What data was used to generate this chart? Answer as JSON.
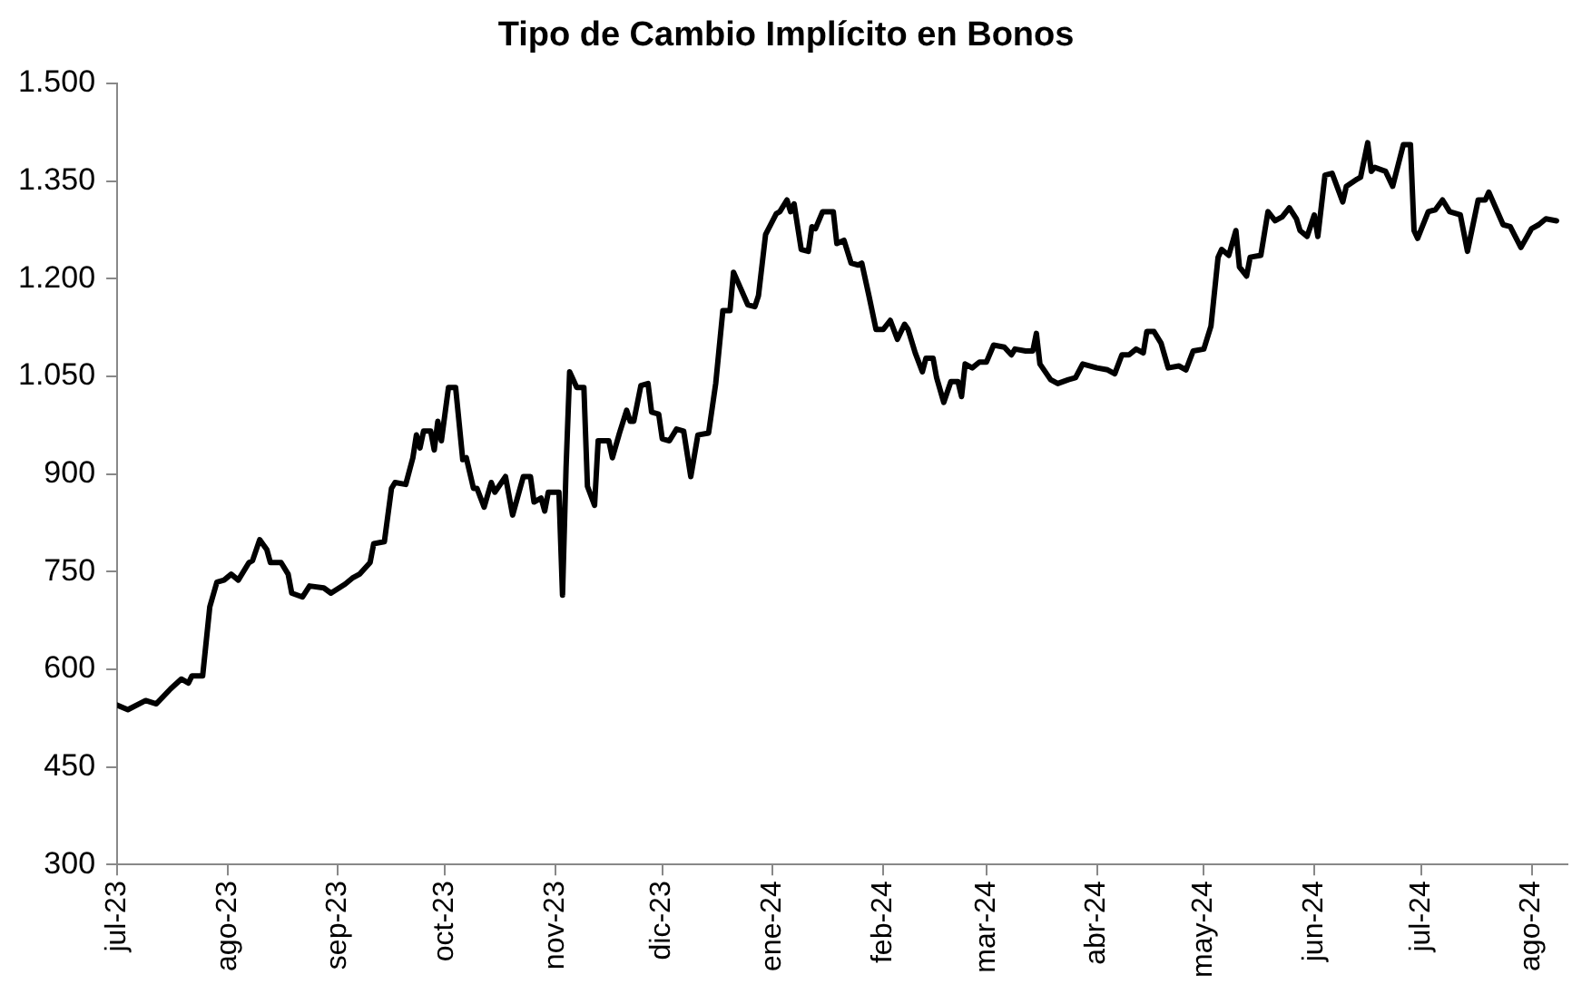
{
  "chart_data": {
    "type": "line",
    "title": "Tipo de Cambio Implícito en Bonos",
    "color": "#000000",
    "x": [
      "2023-07-01",
      "2023-07-04",
      "2023-07-09",
      "2023-07-12",
      "2023-07-16",
      "2023-07-19",
      "2023-07-21",
      "2023-07-22",
      "2023-07-25",
      "2023-07-27",
      "2023-07-29",
      "2023-07-31",
      "2023-08-02",
      "2023-08-04",
      "2023-08-07",
      "2023-08-08",
      "2023-08-10",
      "2023-08-12",
      "2023-08-13",
      "2023-08-16",
      "2023-08-18",
      "2023-08-19",
      "2023-08-22",
      "2023-08-24",
      "2023-08-28",
      "2023-08-30",
      "2023-09-03",
      "2023-09-05",
      "2023-09-07",
      "2023-09-10",
      "2023-09-11",
      "2023-09-14",
      "2023-09-16",
      "2023-09-17",
      "2023-09-20",
      "2023-09-22",
      "2023-09-23",
      "2023-09-24",
      "2023-09-25",
      "2023-09-27",
      "2023-09-28",
      "2023-09-29",
      "2023-09-30",
      "2023-10-02",
      "2023-10-04",
      "2023-10-06",
      "2023-10-07",
      "2023-10-09",
      "2023-10-10",
      "2023-10-12",
      "2023-10-14",
      "2023-10-15",
      "2023-10-18",
      "2023-10-20",
      "2023-10-23",
      "2023-10-25",
      "2023-10-26",
      "2023-10-28",
      "2023-10-29",
      "2023-10-30",
      "2023-11-02",
      "2023-11-03",
      "2023-11-04",
      "2023-11-05",
      "2023-11-07",
      "2023-11-09",
      "2023-11-10",
      "2023-11-12",
      "2023-11-13",
      "2023-11-16",
      "2023-11-17",
      "2023-11-19",
      "2023-11-21",
      "2023-11-22",
      "2023-11-23",
      "2023-11-25",
      "2023-11-27",
      "2023-11-28",
      "2023-11-30",
      "2023-12-01",
      "2023-12-03",
      "2023-12-05",
      "2023-12-07",
      "2023-12-09",
      "2023-12-11",
      "2023-12-14",
      "2023-12-16",
      "2023-12-18",
      "2023-12-20",
      "2023-12-21",
      "2023-12-25",
      "2023-12-27",
      "2023-12-28",
      "2023-12-30",
      "2024-01-02",
      "2024-01-03",
      "2024-01-05",
      "2024-01-06",
      "2024-01-07",
      "2024-01-09",
      "2024-01-11",
      "2024-01-12",
      "2024-01-13",
      "2024-01-15",
      "2024-01-18",
      "2024-01-19",
      "2024-01-21",
      "2024-01-23",
      "2024-01-25",
      "2024-01-26",
      "2024-01-28",
      "2024-01-30",
      "2024-02-01",
      "2024-02-03",
      "2024-02-05",
      "2024-02-07",
      "2024-02-08",
      "2024-02-10",
      "2024-02-12",
      "2024-02-13",
      "2024-02-15",
      "2024-02-16",
      "2024-02-18",
      "2024-02-20",
      "2024-02-22",
      "2024-02-23",
      "2024-02-24",
      "2024-02-26",
      "2024-02-28",
      "2024-03-01",
      "2024-03-03",
      "2024-03-06",
      "2024-03-08",
      "2024-03-09",
      "2024-03-12",
      "2024-03-14",
      "2024-03-15",
      "2024-03-16",
      "2024-03-19",
      "2024-03-21",
      "2024-03-24",
      "2024-03-26",
      "2024-03-28",
      "2024-04-01",
      "2024-04-04",
      "2024-04-06",
      "2024-04-08",
      "2024-04-10",
      "2024-04-12",
      "2024-04-14",
      "2024-04-15",
      "2024-04-17",
      "2024-04-19",
      "2024-04-21",
      "2024-04-24",
      "2024-04-26",
      "2024-04-28",
      "2024-05-01",
      "2024-05-03",
      "2024-05-05",
      "2024-05-06",
      "2024-05-08",
      "2024-05-10",
      "2024-05-11",
      "2024-05-13",
      "2024-05-14",
      "2024-05-17",
      "2024-05-19",
      "2024-05-21",
      "2024-05-23",
      "2024-05-25",
      "2024-05-27",
      "2024-05-28",
      "2024-05-30",
      "2024-06-01",
      "2024-06-02",
      "2024-06-04",
      "2024-06-06",
      "2024-06-09",
      "2024-06-10",
      "2024-06-13",
      "2024-06-14",
      "2024-06-16",
      "2024-06-17",
      "2024-06-18",
      "2024-06-21",
      "2024-06-23",
      "2024-06-26",
      "2024-06-28",
      "2024-06-29",
      "2024-06-30",
      "2024-07-03",
      "2024-07-05",
      "2024-07-07",
      "2024-07-09",
      "2024-07-12",
      "2024-07-14",
      "2024-07-17",
      "2024-07-19",
      "2024-07-20",
      "2024-07-24",
      "2024-07-26",
      "2024-07-29",
      "2024-08-01",
      "2024-08-03",
      "2024-08-05",
      "2024-08-08"
    ],
    "values": [
      545,
      538,
      552,
      547,
      570,
      585,
      579,
      590,
      590,
      696,
      734,
      737,
      746,
      737,
      764,
      767,
      799,
      784,
      764,
      764,
      746,
      717,
      711,
      728,
      725,
      717,
      731,
      740,
      746,
      764,
      793,
      796,
      878,
      887,
      884,
      925,
      960,
      940,
      966,
      966,
      937,
      981,
      951,
      1033,
      1033,
      922,
      925,
      878,
      878,
      849,
      887,
      872,
      896,
      837,
      896,
      896,
      857,
      863,
      843,
      872,
      872,
      714,
      910,
      1057,
      1033,
      1033,
      881,
      852,
      951,
      951,
      925,
      963,
      998,
      981,
      981,
      1036,
      1039,
      995,
      992,
      954,
      951,
      969,
      966,
      896,
      960,
      963,
      1039,
      1151,
      1151,
      1210,
      1160,
      1157,
      1174,
      1268,
      1300,
      1303,
      1321,
      1303,
      1315,
      1245,
      1242,
      1280,
      1277,
      1303,
      1303,
      1254,
      1259,
      1224,
      1221,
      1224,
      1174,
      1122,
      1122,
      1136,
      1107,
      1130,
      1122,
      1086,
      1057,
      1078,
      1078,
      1048,
      1010,
      1042,
      1042,
      1019,
      1069,
      1063,
      1072,
      1072,
      1098,
      1095,
      1083,
      1092,
      1089,
      1089,
      1116,
      1069,
      1045,
      1039,
      1045,
      1048,
      1069,
      1063,
      1060,
      1054,
      1083,
      1083,
      1092,
      1086,
      1119,
      1119,
      1101,
      1063,
      1066,
      1060,
      1089,
      1092,
      1127,
      1233,
      1245,
      1236,
      1274,
      1218,
      1204,
      1233,
      1236,
      1303,
      1289,
      1295,
      1309,
      1292,
      1274,
      1265,
      1298,
      1265,
      1359,
      1362,
      1318,
      1342,
      1353,
      1356,
      1409,
      1365,
      1371,
      1365,
      1342,
      1406,
      1406,
      1274,
      1262,
      1303,
      1306,
      1321,
      1303,
      1298,
      1242,
      1321,
      1321,
      1333,
      1283,
      1280,
      1248,
      1277,
      1283,
      1292,
      1289
    ],
    "xlim": [
      "2023-07-01",
      "2024-08-11"
    ],
    "xticks": [
      {
        "value": "2023-07-01",
        "label": "jul-23"
      },
      {
        "value": "2023-08-01",
        "label": "ago-23"
      },
      {
        "value": "2023-09-01",
        "label": "sep-23"
      },
      {
        "value": "2023-10-01",
        "label": "oct-23"
      },
      {
        "value": "2023-11-01",
        "label": "nov-23"
      },
      {
        "value": "2023-12-01",
        "label": "dic-23"
      },
      {
        "value": "2024-01-01",
        "label": "ene-24"
      },
      {
        "value": "2024-02-01",
        "label": "feb-24"
      },
      {
        "value": "2024-03-01",
        "label": "mar-24"
      },
      {
        "value": "2024-04-01",
        "label": "abr-24"
      },
      {
        "value": "2024-05-01",
        "label": "may-24"
      },
      {
        "value": "2024-06-01",
        "label": "jun-24"
      },
      {
        "value": "2024-07-01",
        "label": "jul-24"
      },
      {
        "value": "2024-08-01",
        "label": "ago-24"
      }
    ],
    "ylim": [
      300,
      1500
    ],
    "yticks": [
      300,
      450,
      600,
      750,
      900,
      {
        "value": 1050,
        "label": "1.050"
      },
      {
        "value": 1200,
        "label": "1.200"
      },
      {
        "value": 1350,
        "label": "1.350"
      },
      {
        "value": 1500,
        "label": "1.500"
      }
    ],
    "marker": "none",
    "line_style": "solid"
  }
}
